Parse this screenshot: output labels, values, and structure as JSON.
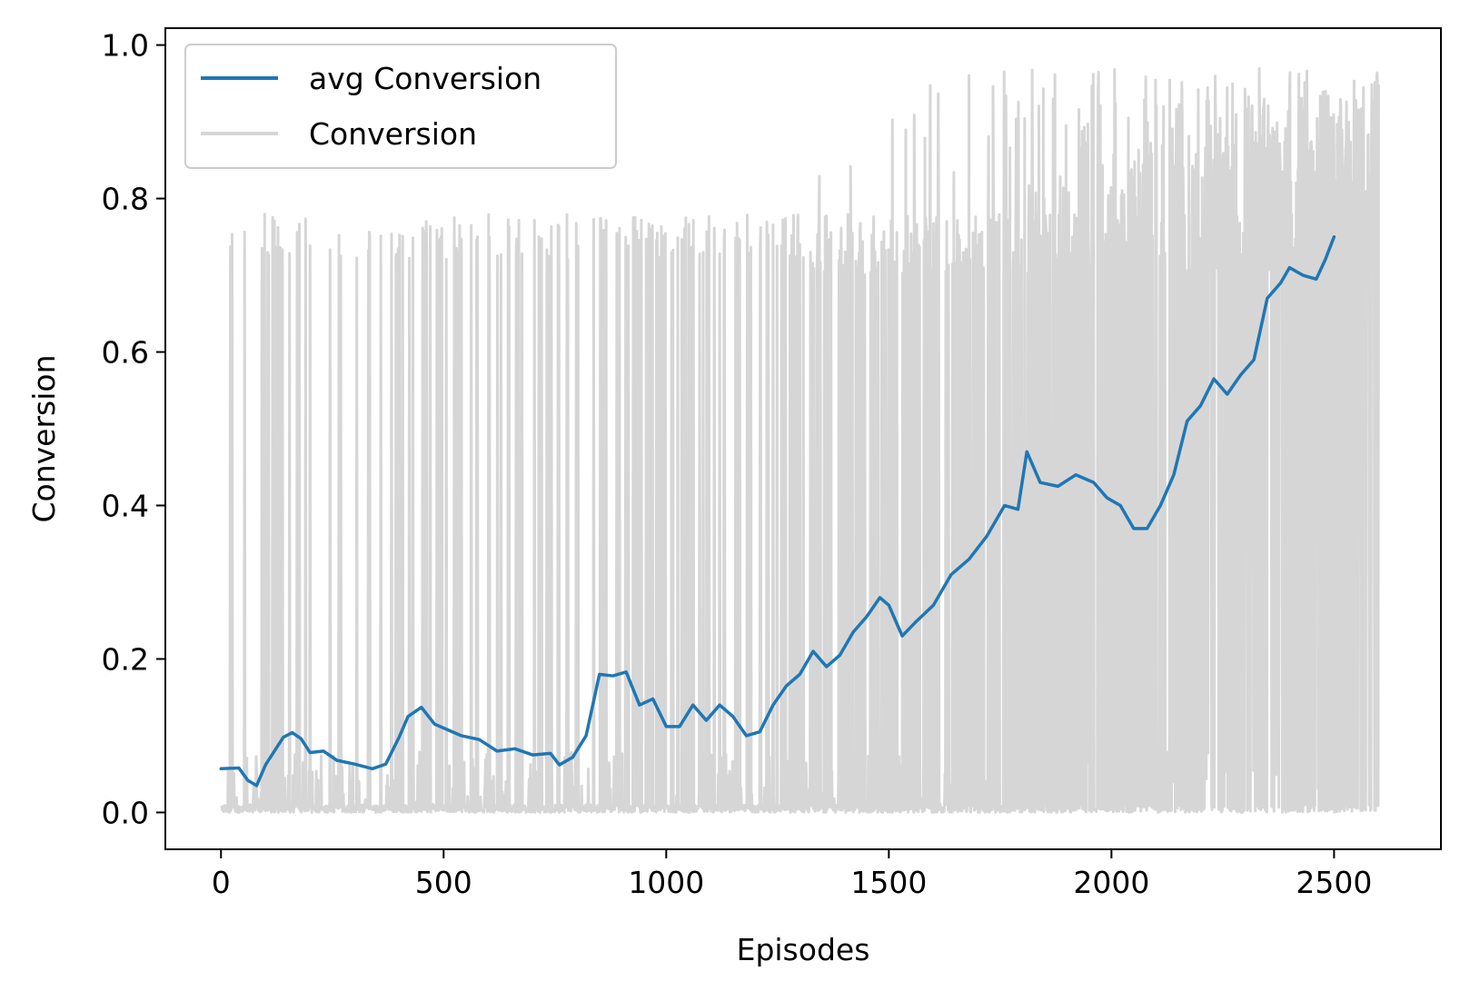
{
  "chart_data": {
    "type": "line",
    "title": "",
    "xlabel": "Episodes",
    "ylabel": "Conversion",
    "xlim": [
      -125,
      2740
    ],
    "ylim": [
      -0.048,
      1.022
    ],
    "xticks": [
      0,
      500,
      1000,
      1500,
      2000,
      2500
    ],
    "xtick_labels": [
      "0",
      "500",
      "1000",
      "1500",
      "2000",
      "2500"
    ],
    "yticks": [
      0.0,
      0.2,
      0.4,
      0.6,
      0.8,
      1.0
    ],
    "ytick_labels": [
      "0.0",
      "0.2",
      "0.4",
      "0.6",
      "0.8",
      "1.0"
    ],
    "grid": false,
    "legend_position": "top-left",
    "series": [
      {
        "name": "avg Conversion",
        "color": "#1f77b4",
        "x": [
          0,
          40,
          60,
          80,
          100,
          120,
          140,
          160,
          180,
          200,
          230,
          260,
          300,
          340,
          370,
          400,
          420,
          450,
          480,
          500,
          540,
          580,
          620,
          660,
          700,
          740,
          760,
          790,
          820,
          850,
          880,
          910,
          940,
          970,
          1000,
          1030,
          1060,
          1090,
          1120,
          1150,
          1180,
          1210,
          1240,
          1270,
          1300,
          1330,
          1360,
          1390,
          1420,
          1450,
          1480,
          1500,
          1530,
          1560,
          1600,
          1640,
          1680,
          1720,
          1760,
          1790,
          1810,
          1840,
          1880,
          1920,
          1960,
          1990,
          2020,
          2050,
          2080,
          2110,
          2140,
          2170,
          2200,
          2230,
          2260,
          2290,
          2320,
          2350,
          2380,
          2400,
          2430,
          2460,
          2480,
          2500
        ],
        "values": [
          0.057,
          0.058,
          0.042,
          0.035,
          0.062,
          0.08,
          0.098,
          0.104,
          0.096,
          0.078,
          0.08,
          0.068,
          0.063,
          0.057,
          0.063,
          0.098,
          0.125,
          0.137,
          0.115,
          0.11,
          0.1,
          0.095,
          0.08,
          0.083,
          0.075,
          0.077,
          0.062,
          0.072,
          0.1,
          0.18,
          0.178,
          0.183,
          0.14,
          0.148,
          0.112,
          0.112,
          0.14,
          0.12,
          0.14,
          0.125,
          0.1,
          0.105,
          0.14,
          0.165,
          0.18,
          0.21,
          0.19,
          0.205,
          0.235,
          0.255,
          0.28,
          0.27,
          0.23,
          0.248,
          0.27,
          0.31,
          0.33,
          0.36,
          0.4,
          0.395,
          0.47,
          0.43,
          0.425,
          0.44,
          0.43,
          0.41,
          0.4,
          0.37,
          0.37,
          0.4,
          0.44,
          0.51,
          0.53,
          0.565,
          0.545,
          0.57,
          0.59,
          0.67,
          0.69,
          0.71,
          0.7,
          0.695,
          0.72,
          0.75
        ]
      },
      {
        "name": "Conversion",
        "color": "#d6d6d6",
        "x": [],
        "values": []
      }
    ]
  }
}
